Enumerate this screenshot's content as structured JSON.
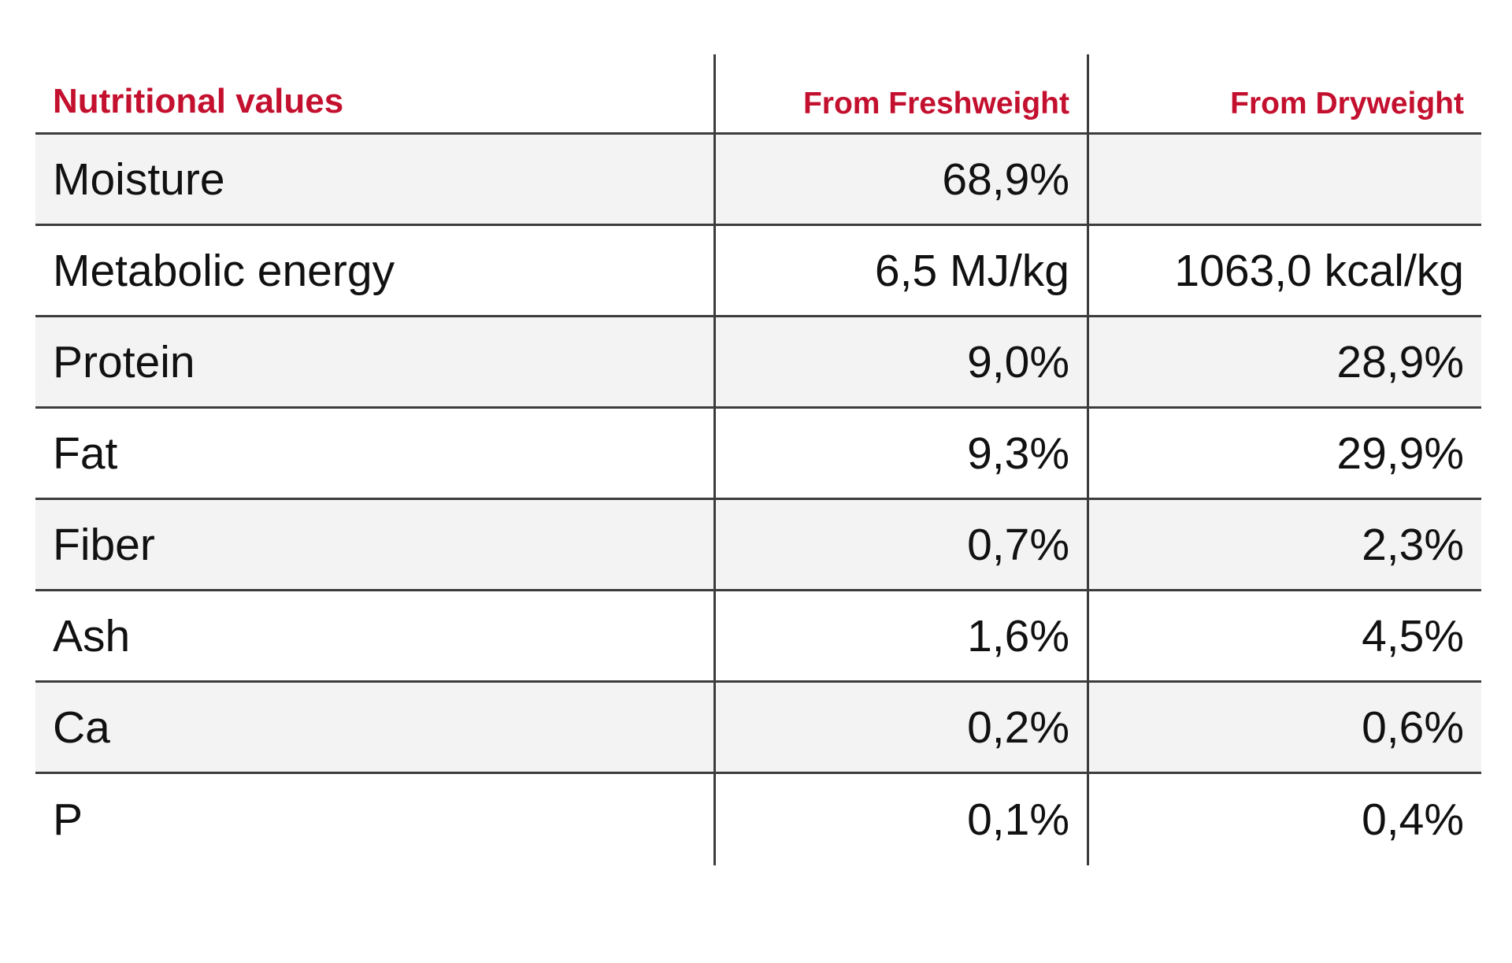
{
  "table": {
    "headers": {
      "label": "Nutritional values",
      "fresh": "From Freshweight",
      "dry": "From Dryweight"
    },
    "rows": [
      {
        "label": "Moisture",
        "fresh": "68,9%",
        "dry": ""
      },
      {
        "label": "Metabolic energy",
        "fresh": "6,5 MJ/kg",
        "dry": "1063,0 kcal/kg"
      },
      {
        "label": "Protein",
        "fresh": "9,0%",
        "dry": "28,9%"
      },
      {
        "label": "Fat",
        "fresh": "9,3%",
        "dry": "29,9%"
      },
      {
        "label": "Fiber",
        "fresh": "0,7%",
        "dry": "2,3%"
      },
      {
        "label": "Ash",
        "fresh": "1,6%",
        "dry": "4,5%"
      },
      {
        "label": "Ca",
        "fresh": "0,2%",
        "dry": "0,6%"
      },
      {
        "label": "P",
        "fresh": "0,1%",
        "dry": "0,4%"
      }
    ]
  },
  "colors": {
    "header_text": "#c4102f",
    "row_shade": "#f3f3f3",
    "grid_line": "#3c3c3c"
  }
}
